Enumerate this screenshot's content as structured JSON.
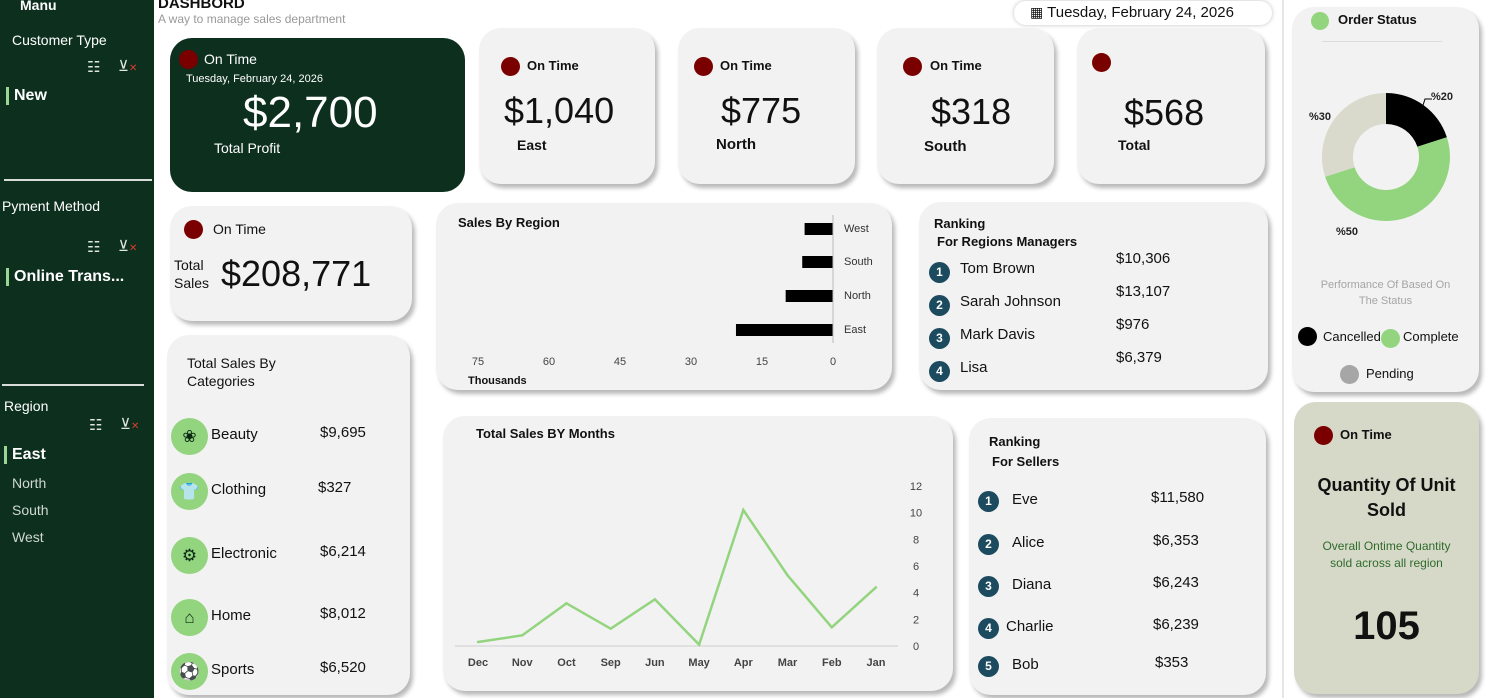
{
  "sidebar": {
    "menu_title": "Manu",
    "customer_type": {
      "title": "Customer Type",
      "selected": "New"
    },
    "payment_method": {
      "title": "Pyment Method",
      "selected": "Online Trans..."
    },
    "region": {
      "title": "Region",
      "selected": "East",
      "items": [
        "North",
        "South",
        "West"
      ]
    }
  },
  "header": {
    "title": "DASHBORD",
    "subtitle": "A way to manage sales department",
    "date": "Tuesday, February 24, 2026"
  },
  "profit_card": {
    "status": "On Time",
    "date": "Tuesday, February 24, 2026",
    "value": "$2,700",
    "label": "Total Profit"
  },
  "region_cards": [
    {
      "status": "On Time",
      "value": "$1,040",
      "label": "East"
    },
    {
      "status": "On Time",
      "value": "$775",
      "label": "North"
    },
    {
      "status": "On Time",
      "value": "$318",
      "label": "South"
    },
    {
      "status": "",
      "value": "$568",
      "label": "Total"
    }
  ],
  "total_sales_card": {
    "status": "On Time",
    "label_line1": "Total",
    "label_line2": "Sales",
    "value": "$208,771"
  },
  "sales_by_region": {
    "title": "Sales By Region",
    "unit_label": "Thousands"
  },
  "region_ranking": {
    "title_line1": "Ranking",
    "title_line2": "For Regions Managers",
    "rows": [
      {
        "rank": "1",
        "name": "Tom Brown",
        "value": "$10,306"
      },
      {
        "rank": "2",
        "name": "Sarah Johnson",
        "value": "$13,107"
      },
      {
        "rank": "3",
        "name": "Mark Davis",
        "value": "$976"
      },
      {
        "rank": "4",
        "name": "Lisa",
        "value": "$6,379"
      }
    ]
  },
  "categories": {
    "title_line1": "Total Sales By",
    "title_line2": "Categories",
    "rows": [
      {
        "name": "Beauty",
        "value": "$9,695",
        "icon": "lotus-icon"
      },
      {
        "name": "Clothing",
        "value": "$327",
        "icon": "shirt-icon"
      },
      {
        "name": "Electronic",
        "value": "$6,214",
        "icon": "robot-icon"
      },
      {
        "name": "Home",
        "value": "$8,012",
        "icon": "home-appliance-icon"
      },
      {
        "name": "Sports",
        "value": "$6,520",
        "icon": "sports-ball-icon"
      }
    ]
  },
  "monthly_sales": {
    "title": "Total Sales BY Months"
  },
  "seller_ranking": {
    "title_line1": "Ranking",
    "title_line2": "For Sellers",
    "rows": [
      {
        "rank": "1",
        "name": "Eve",
        "value": "$11,580"
      },
      {
        "rank": "2",
        "name": "Alice",
        "value": "$6,353"
      },
      {
        "rank": "3",
        "name": "Diana",
        "value": "$6,243"
      },
      {
        "rank": "4",
        "name": "Charlie",
        "value": "$6,239"
      },
      {
        "rank": "5",
        "name": "Bob",
        "value": "$353"
      }
    ]
  },
  "order_status": {
    "title": "Order Status",
    "caption_line1": "Performance Of Based On",
    "caption_line2": "The Status",
    "legend": [
      {
        "label": "Cancelled",
        "color": "#000000"
      },
      {
        "label": "Complete",
        "color": "#93d47f"
      },
      {
        "label": "Pending",
        "color": "#a6a6a6"
      }
    ]
  },
  "quantity_card": {
    "status": "On Time",
    "title_line1": "Quantity Of  Unit",
    "title_line2": "Sold",
    "caption_line1": "Overall Ontime Quantity",
    "caption_line2": "sold across all region",
    "value": "105"
  },
  "colors": {
    "sidebar_bg": "#0d2f1e",
    "accent_green": "#93d47f",
    "status_red": "#7a0000",
    "rank_badge": "#1c4a5e",
    "quantity_bg": "#d6d9c8"
  },
  "chart_data": [
    {
      "type": "bar",
      "orientation": "horizontal",
      "title": "Sales By Region",
      "xlabel": "Thousands",
      "categories": [
        "West",
        "South",
        "North",
        "East"
      ],
      "values": [
        6,
        6.5,
        10,
        20.5
      ],
      "x_ticks": [
        "75",
        "60",
        "45",
        "30",
        "15",
        "0"
      ],
      "xlim": [
        0,
        75
      ],
      "x_reversed": true,
      "color": "#000000"
    },
    {
      "type": "line",
      "title": "Total Sales BY Months",
      "x": [
        "Dec",
        "Nov",
        "Oct",
        "Sep",
        "Jun",
        "May",
        "Apr",
        "Mar",
        "Feb",
        "Jan"
      ],
      "values": [
        0.3,
        0.8,
        3.2,
        1.3,
        3.5,
        0.1,
        10.2,
        5.3,
        1.4,
        4.4
      ],
      "y_ticks": [
        "0",
        "2",
        "4",
        "6",
        "8",
        "10",
        "12"
      ],
      "ylim": [
        0,
        12
      ],
      "y_axis_side": "right",
      "color": "#93d47f"
    },
    {
      "type": "pie",
      "title": "Order Status",
      "donut": true,
      "labels": [
        "Cancelled",
        "Complete",
        "Pending"
      ],
      "values": [
        20,
        50,
        30
      ],
      "data_labels": [
        "%20",
        "%50",
        "%30"
      ],
      "colors": [
        "#000000",
        "#93d47f",
        "#d9d9cc"
      ]
    }
  ]
}
